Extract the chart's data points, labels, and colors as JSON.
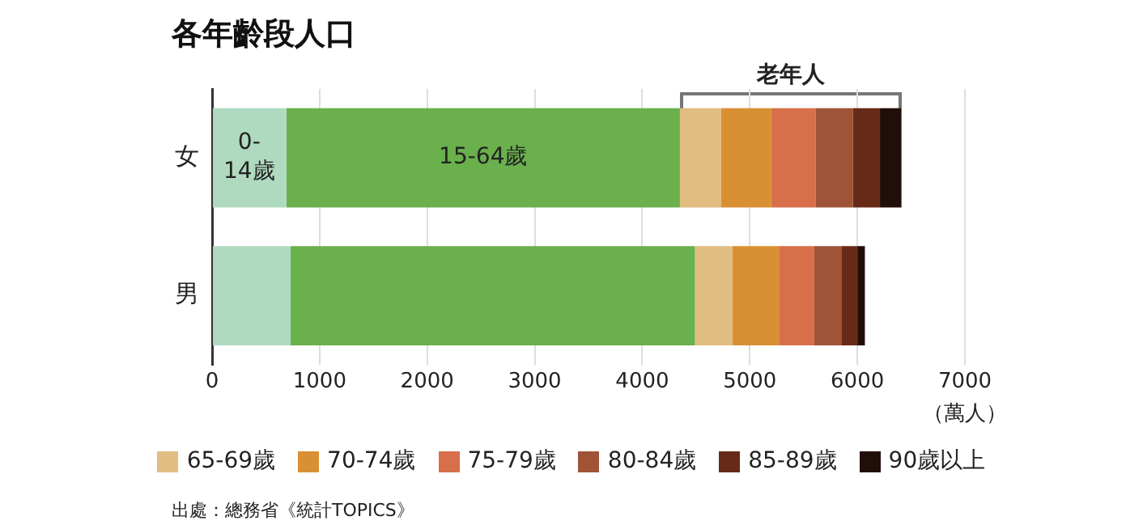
{
  "chart_data": {
    "type": "bar",
    "orientation": "horizontal",
    "stacked": true,
    "title": "各年齡段人口",
    "xlabel": "（萬人）",
    "categories": [
      "女",
      "男"
    ],
    "series": [
      {
        "color": "#b0dac0",
        "values": [
          690,
          730
        ]
      },
      {
        "color": "#6ab04c",
        "values": [
          3660,
          3760
        ]
      },
      {
        "name": "65-69歲",
        "color": "#e2bd82",
        "values": [
          380,
          350
        ]
      },
      {
        "name": "70-74歲",
        "color": "#d99033",
        "values": [
          470,
          430
        ]
      },
      {
        "name": "75-79歲",
        "color": "#d86f4b",
        "values": [
          410,
          330
        ]
      },
      {
        "name": "80-84歲",
        "color": "#9f5438",
        "values": [
          350,
          250
        ]
      },
      {
        "name": "85-89歲",
        "color": "#682a18",
        "values": [
          250,
          150
        ]
      },
      {
        "name": "90歲以上",
        "color": "#220e08",
        "values": [
          200,
          70
        ]
      }
    ],
    "xlim": [
      0,
      7000
    ],
    "xticks": [
      0,
      1000,
      2000,
      3000,
      4000,
      5000,
      6000,
      7000
    ],
    "grid": "x",
    "legend": "bottom",
    "annotations": [
      {
        "text": "0-\n14歲",
        "x": 345,
        "y": "女"
      },
      {
        "text": "15-64歲",
        "x": 2520,
        "y": "女"
      },
      "老年人",
      "出處：總務省《統計TOPICS》"
    ]
  }
}
